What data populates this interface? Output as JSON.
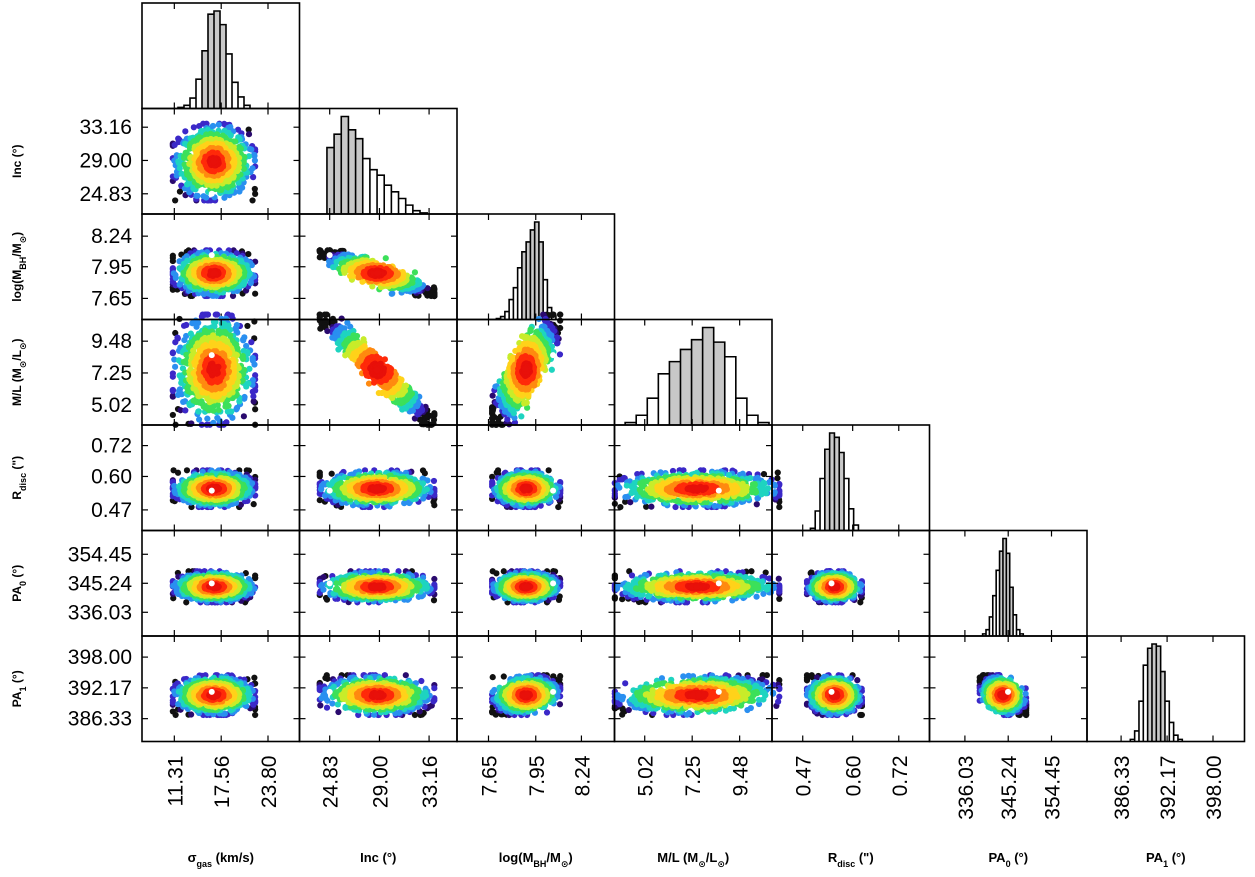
{
  "chart_data": {
    "type": "corner",
    "parameters": [
      {
        "id": "sigma",
        "xlabel": "σ_gas (km/s)",
        "ylabel": "",
        "x_label_parts": [
          {
            "t": "σ",
            "s": "n"
          },
          {
            "t": "gas",
            "s": "sub"
          },
          {
            "t": " (km/s)",
            "s": "n"
          }
        ],
        "y_label_parts": [],
        "ticks": [
          "11.31",
          "17.56",
          "23.80"
        ],
        "range": [
          7.0,
          28.0
        ],
        "best": 16.3,
        "hist": {
          "edges_start": 11.8,
          "bin": 0.8,
          "counts": [
            1,
            3,
            10,
            28,
            55,
            90,
            93,
            80,
            52,
            25,
            11,
            3
          ],
          "fill_from": 4,
          "fill_to": 7
        }
      },
      {
        "id": "inc",
        "xlabel": "Inc (°)",
        "ylabel": "Inc (°)",
        "x_label_parts": [
          {
            "t": "Inc (°)",
            "s": "n"
          }
        ],
        "y_label_parts": [
          {
            "t": "Inc (°)",
            "s": "n"
          }
        ],
        "ticks": [
          "24.83",
          "29.00",
          "33.16"
        ],
        "range": [
          22.3,
          35.5
        ],
        "best": 24.83,
        "hist": {
          "edges_start": 24.6,
          "bin": 0.6,
          "counts": [
            60,
            72,
            88,
            76,
            68,
            50,
            40,
            35,
            26,
            20,
            14,
            8,
            3,
            1
          ],
          "fill_from": 0,
          "fill_to": 4
        }
      },
      {
        "id": "mbh",
        "xlabel": "log(M_BH/M_⊙)",
        "ylabel": "log(M_BH/M_⊙)",
        "x_label_parts": [
          {
            "t": "log(M",
            "s": "n"
          },
          {
            "t": "BH",
            "s": "sub"
          },
          {
            "t": "/M",
            "s": "n"
          },
          {
            "t": "⊙",
            "s": "sub"
          },
          {
            "t": ")",
            "s": "n"
          }
        ],
        "y_label_parts": [
          {
            "t": "log(M",
            "s": "n"
          },
          {
            "t": "BH",
            "s": "sub"
          },
          {
            "t": "/M",
            "s": "n"
          },
          {
            "t": "⊙",
            "s": "sub"
          },
          {
            "t": ")",
            "s": "n"
          }
        ],
        "ticks": [
          "7.65",
          "7.95",
          "8.24"
        ],
        "range": [
          7.45,
          8.45
        ],
        "best": 8.06,
        "hist": {
          "edges_start": 7.7,
          "bin": 0.027,
          "counts": [
            1,
            3,
            8,
            20,
            32,
            52,
            68,
            78,
            90,
            98,
            78,
            40,
            12,
            4
          ],
          "fill_from": 6,
          "fill_to": 10
        }
      },
      {
        "id": "ml",
        "xlabel": "M/L (M_⊙/L_⊙)",
        "ylabel": "M/L (M_⊙/L_⊙)",
        "x_label_parts": [
          {
            "t": "M/L (M",
            "s": "n"
          },
          {
            "t": "⊙",
            "s": "sub"
          },
          {
            "t": "/L",
            "s": "n"
          },
          {
            "t": "⊙",
            "s": "sub"
          },
          {
            "t": ")",
            "s": "n"
          }
        ],
        "y_label_parts": [
          {
            "t": "M/L (M",
            "s": "n"
          },
          {
            "t": "⊙",
            "s": "sub"
          },
          {
            "t": "/L",
            "s": "n"
          },
          {
            "t": "⊙",
            "s": "sub"
          },
          {
            "t": ")",
            "s": "n"
          }
        ],
        "ticks": [
          "5.02",
          "7.25",
          "9.48"
        ],
        "range": [
          3.6,
          11.0
        ],
        "best": 8.5,
        "hist": {
          "edges_start": 4.1,
          "bin": 0.52,
          "counts": [
            2,
            8,
            22,
            42,
            52,
            62,
            70,
            80,
            68,
            56,
            22,
            8,
            2
          ],
          "fill_from": 4,
          "fill_to": 8
        }
      },
      {
        "id": "rdisc",
        "xlabel": "R_disc (\")",
        "ylabel": "R_disc (\")",
        "x_label_parts": [
          {
            "t": "R",
            "s": "n"
          },
          {
            "t": "disc",
            "s": "sub"
          },
          {
            "t": " (\")",
            "s": "n"
          }
        ],
        "y_label_parts": [
          {
            "t": "R",
            "s": "n"
          },
          {
            "t": "disc",
            "s": "sub"
          },
          {
            "t": " (\")",
            "s": "n"
          }
        ],
        "ticks": [
          "0.47",
          "0.60",
          "0.72"
        ],
        "range": [
          0.39,
          0.8
        ],
        "best": 0.545,
        "hist": {
          "edges_start": 0.49,
          "bin": 0.0125,
          "counts": [
            2,
            18,
            48,
            75,
            90,
            86,
            72,
            48,
            20,
            5
          ],
          "fill_from": 3,
          "fill_to": 6
        }
      },
      {
        "id": "pa0",
        "xlabel": "PA_0 (°)",
        "ylabel": "PA_0 (°)",
        "x_label_parts": [
          {
            "t": "PA",
            "s": "n"
          },
          {
            "t": "0",
            "s": "sub"
          },
          {
            "t": " (°)",
            "s": "n"
          }
        ],
        "y_label_parts": [
          {
            "t": "PA",
            "s": "n"
          },
          {
            "t": "0",
            "s": "sub"
          },
          {
            "t": " (°)",
            "s": "n"
          }
        ],
        "ticks": [
          "336.03",
          "345.24",
          "354.45"
        ],
        "range": [
          328.5,
          362.0
        ],
        "best": 345.2,
        "hist": {
          "edges_start": 339.8,
          "bin": 0.72,
          "counts": [
            2,
            6,
            18,
            38,
            62,
            80,
            92,
            78,
            46,
            20,
            6,
            2
          ],
          "fill_from": 5,
          "fill_to": 8
        }
      },
      {
        "id": "pa1",
        "xlabel": "PA_1 (°)",
        "ylabel": "PA_1 (°)",
        "x_label_parts": [
          {
            "t": "PA",
            "s": "n"
          },
          {
            "t": "1",
            "s": "sub"
          },
          {
            "t": " (°)",
            "s": "n"
          }
        ],
        "y_label_parts": [
          {
            "t": "PA",
            "s": "n"
          },
          {
            "t": "1",
            "s": "sub"
          },
          {
            "t": " (°)",
            "s": "n"
          }
        ],
        "ticks": [
          "386.33",
          "392.17",
          "398.00"
        ],
        "range": [
          382.0,
          402.0
        ],
        "best": 391.4,
        "hist": {
          "edges_start": 387.5,
          "bin": 0.55,
          "counts": [
            2,
            10,
            38,
            72,
            88,
            92,
            90,
            66,
            38,
            18,
            6,
            2
          ],
          "fill_from": 4,
          "fill_to": 7
        }
      }
    ],
    "pair_correlations": {
      "1-0": 0.0,
      "2-0": 0.0,
      "2-1": -0.85,
      "3-0": 0.0,
      "3-1": -0.96,
      "3-2": 0.8,
      "4-0": 0.1,
      "4-1": 0.0,
      "4-2": 0.0,
      "4-3": 0.0,
      "5-0": 0.0,
      "5-1": 0.0,
      "5-2": 0.1,
      "5-3": 0.1,
      "5-4": 0.0,
      "6-0": 0.0,
      "6-1": -0.2,
      "6-2": 0.35,
      "6-3": 0.35,
      "6-4": -0.1,
      "6-5": -0.45
    },
    "colormap": [
      "#2a0a6e",
      "#3b28c8",
      "#2a8ff0",
      "#1ed4c0",
      "#3ce05a",
      "#c8ec2a",
      "#ffd21a",
      "#ff8a10",
      "#ff2a0a",
      "#e8100a"
    ],
    "hist_fill": "#c8c8c8",
    "best_fit_marker": "#ffffff"
  }
}
